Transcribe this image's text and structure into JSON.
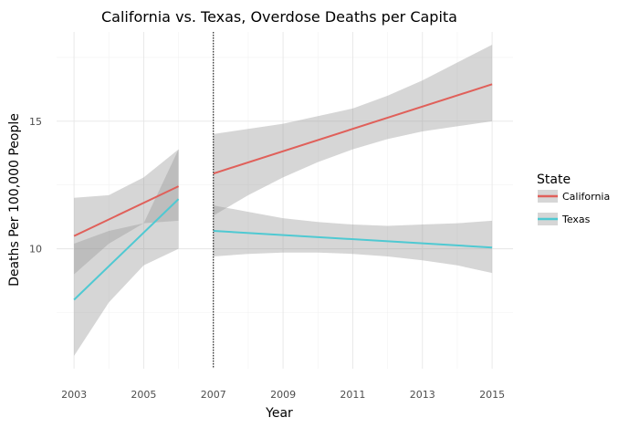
{
  "chart_data": {
    "type": "line",
    "title": "California vs. Texas, Overdose Deaths per Capita",
    "xlabel": "Year",
    "ylabel": "Deaths Per 100,000 People",
    "xlim": [
      2002.5,
      2015.6
    ],
    "ylim": [
      5.3,
      18.5
    ],
    "x_ticks": [
      2003,
      2005,
      2007,
      2009,
      2011,
      2013,
      2015
    ],
    "x_tick_labels": [
      "2003",
      "2005",
      "2007",
      "2009",
      "2011",
      "2013",
      "2015"
    ],
    "y_ticks": [
      10,
      15
    ],
    "y_tick_labels": [
      "10",
      "15"
    ],
    "grid": true,
    "vline": {
      "x": 2007,
      "style": "dotted",
      "color": "#000000"
    },
    "legend": {
      "title": "State",
      "placement": "right",
      "entries": [
        {
          "label": "California",
          "color": "#e0605a"
        },
        {
          "label": "Texas",
          "color": "#4fc9d2"
        }
      ]
    },
    "series": [
      {
        "name": "California",
        "color": "#e0605a",
        "segments": [
          {
            "x": [
              2003,
              2006
            ],
            "y": [
              10.5,
              12.45
            ],
            "ci_x": [
              2003,
              2004,
              2005,
              2006
            ],
            "ci_lower": [
              9.0,
              10.2,
              11.0,
              11.1
            ],
            "ci_upper": [
              12.0,
              12.1,
              12.8,
              13.9
            ]
          },
          {
            "x": [
              2007,
              2015
            ],
            "y": [
              12.95,
              16.45
            ],
            "ci_x": [
              2007,
              2008,
              2009,
              2010,
              2011,
              2012,
              2013,
              2014,
              2015
            ],
            "ci_lower": [
              11.3,
              12.1,
              12.8,
              13.4,
              13.9,
              14.3,
              14.6,
              14.8,
              15.0
            ],
            "ci_upper": [
              14.5,
              14.7,
              14.9,
              15.2,
              15.5,
              16.0,
              16.6,
              17.3,
              18.0
            ]
          }
        ]
      },
      {
        "name": "Texas",
        "color": "#4fc9d2",
        "segments": [
          {
            "x": [
              2003,
              2006
            ],
            "y": [
              8.0,
              11.95
            ],
            "ci_x": [
              2003,
              2004,
              2005,
              2006
            ],
            "ci_lower": [
              5.8,
              7.9,
              9.35,
              10.0
            ],
            "ci_upper": [
              10.2,
              10.7,
              11.0,
              13.9
            ]
          },
          {
            "x": [
              2007,
              2015
            ],
            "y": [
              10.7,
              10.05
            ],
            "ci_x": [
              2007,
              2008,
              2009,
              2010,
              2011,
              2012,
              2013,
              2014,
              2015
            ],
            "ci_lower": [
              9.7,
              9.8,
              9.85,
              9.85,
              9.8,
              9.7,
              9.55,
              9.35,
              9.05
            ],
            "ci_upper": [
              11.7,
              11.45,
              11.2,
              11.05,
              10.95,
              10.9,
              10.95,
              11.0,
              11.1
            ]
          }
        ]
      }
    ]
  }
}
